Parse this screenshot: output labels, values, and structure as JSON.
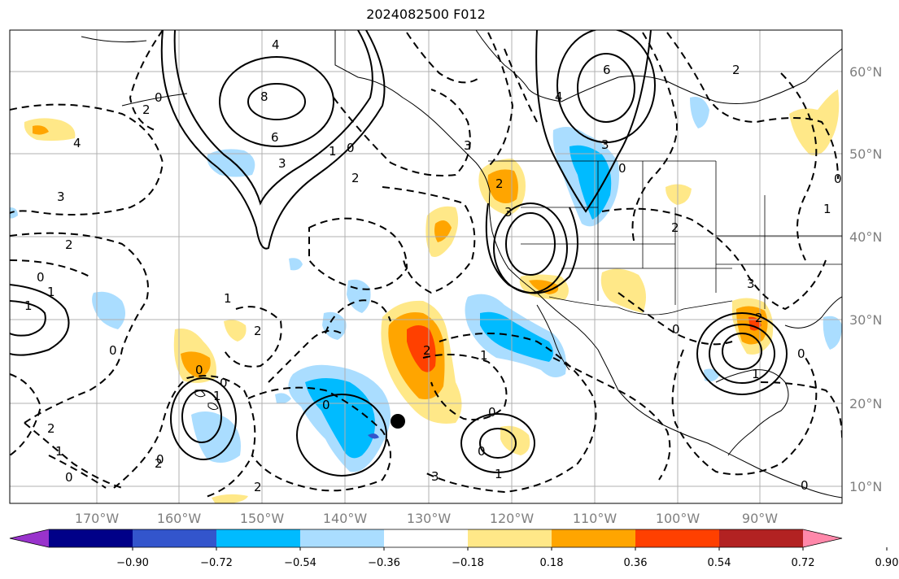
{
  "title": "2024082500 F012",
  "lon_ticks": [
    "170°W",
    "160°W",
    "150°W",
    "140°W",
    "130°W",
    "120°W",
    "110°W",
    "100°W",
    "90°W"
  ],
  "lat_ticks": [
    "60°N",
    "50°N",
    "40°N",
    "30°N",
    "20°N",
    "10°N"
  ],
  "colorbar": {
    "levels": [
      "−0.90",
      "−0.72",
      "−0.54",
      "−0.36",
      "−0.18",
      "0.18",
      "0.36",
      "0.54",
      "0.72",
      "0.90"
    ],
    "colors": [
      "#9933cc",
      "#000088",
      "#3355cc",
      "#00bbff",
      "#aaddff",
      "#ffffff",
      "#ffe888",
      "#ffa500",
      "#ff4000",
      "#b22222",
      "#ff88aa"
    ]
  },
  "contour_labels": [
    "4",
    "8",
    "6",
    "3",
    "1",
    "0",
    "2",
    "4",
    "3",
    "2",
    "1",
    "0",
    "3",
    "6",
    "4",
    "3",
    "0",
    "2",
    "3",
    "2",
    "1",
    "0",
    "2",
    "0",
    "1",
    "2",
    "0",
    "2",
    "1",
    "0",
    "2",
    "2",
    "0",
    "0",
    "1",
    "3",
    "1",
    "0",
    "0",
    "2",
    "1",
    "0",
    "2",
    "1",
    "0",
    "3",
    "0",
    "2",
    "1",
    "0",
    "0"
  ],
  "marker": "black-dot"
}
